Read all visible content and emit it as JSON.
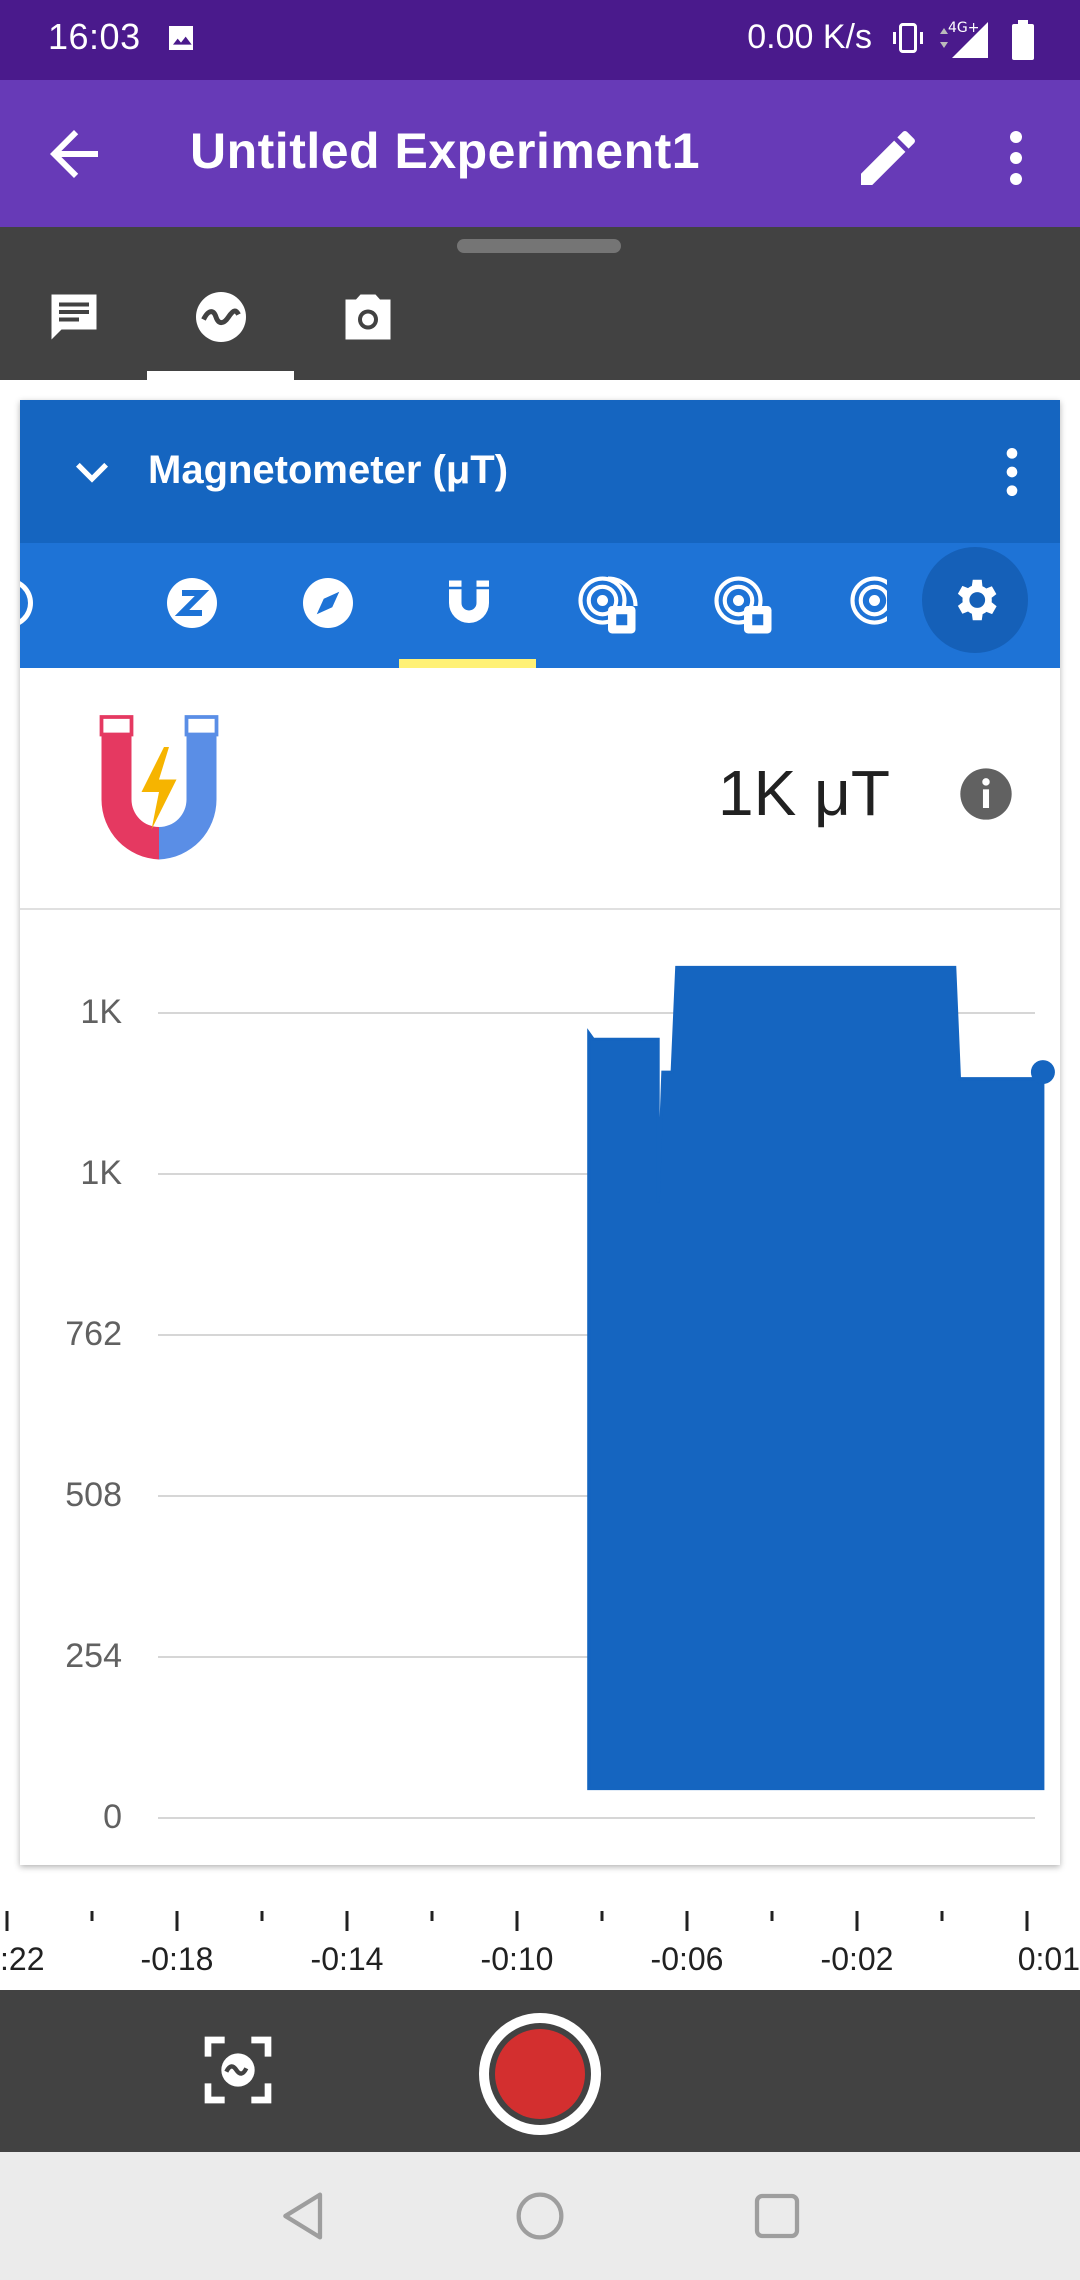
{
  "status_bar": {
    "time": "16:03",
    "network_speed": "0.00 K/s",
    "network_type": "4G+",
    "icons": [
      "image-icon",
      "vibrate-icon",
      "signal-icon",
      "battery-icon"
    ]
  },
  "app_bar": {
    "title": "Untitled Experiment1",
    "icons": [
      "back-arrow-icon",
      "edit-pencil-icon",
      "more-vert-icon"
    ]
  },
  "tabs": [
    {
      "name": "notes",
      "icon": "note-icon",
      "selected": false
    },
    {
      "name": "sensors",
      "icon": "waveform-icon",
      "selected": true
    },
    {
      "name": "camera",
      "icon": "camera-icon",
      "selected": false
    }
  ],
  "sensor_card": {
    "title": "Magnetometer (μT)",
    "sensor_tabs": [
      {
        "icon": "partial-circle-icon"
      },
      {
        "icon": "z-sensor-icon"
      },
      {
        "icon": "compass-icon"
      },
      {
        "icon": "magnet-icon",
        "selected": true
      },
      {
        "icon": "sound-sensor-icon"
      },
      {
        "icon": "sound-sensor-icon"
      },
      {
        "icon": "partial-sound-icon"
      }
    ],
    "reading": "1K μT",
    "colors": {
      "header": "#1565c0",
      "selector": "#1e73d6",
      "accent": "#fff176",
      "series": "#1565c0"
    }
  },
  "chart_data": {
    "type": "area",
    "y_tick_labels": [
      "1K",
      "1K",
      "762",
      "508",
      "254",
      "0"
    ],
    "ylim": [
      0,
      1270
    ],
    "x_tick_labels": [
      ":22",
      "-0:18",
      "-0:14",
      "-0:10",
      "-0:06",
      "-0:02",
      "0:01"
    ],
    "xlim": [
      -22.3,
      1.0
    ],
    "grid": true,
    "series": [
      {
        "x": [
          -9.6,
          -9.5,
          -8.1,
          -8.1,
          -8.0,
          -7.8,
          -7.7,
          -7.5,
          -7.4,
          -1.7,
          -1.6,
          0.1,
          0.2
        ],
        "y": [
          1200,
          1190,
          1190,
          940,
          1140,
          1140,
          1300,
          1300,
          1300,
          1300,
          1130,
          1130,
          1140
        ],
        "floor": 45
      }
    ]
  },
  "controls": {
    "icons": [
      "snapshot-icon",
      "record-icon"
    ]
  },
  "nav": {
    "icons": [
      "nav-back-icon",
      "nav-home-icon",
      "nav-recents-icon"
    ]
  }
}
